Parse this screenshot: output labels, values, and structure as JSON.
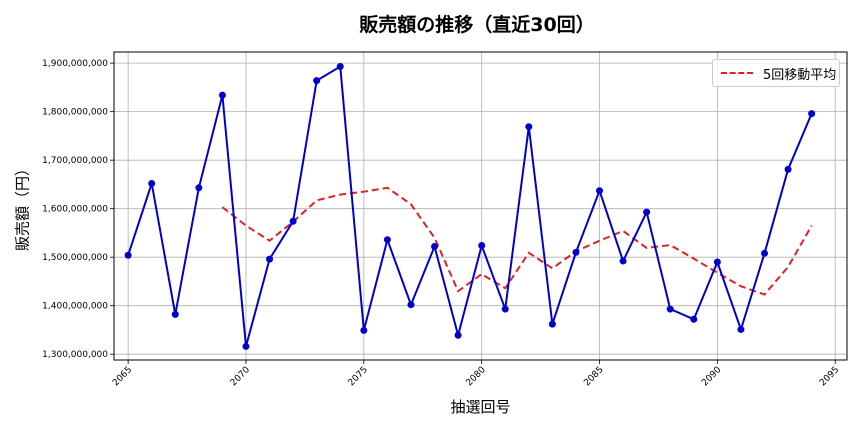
{
  "chart_data": {
    "type": "line",
    "title": "販売額の推移（直近30回）",
    "xlabel": "抽選回号",
    "ylabel": "販売額（円）",
    "x": [
      2065,
      2066,
      2067,
      2068,
      2069,
      2070,
      2071,
      2072,
      2073,
      2074,
      2075,
      2076,
      2077,
      2078,
      2079,
      2080,
      2081,
      2082,
      2083,
      2084,
      2085,
      2086,
      2087,
      2088,
      2089,
      2090,
      2091,
      2092,
      2093,
      2094
    ],
    "series": [
      {
        "name": "販売額",
        "color": "#0000cc",
        "style": "solid-with-markers",
        "values": [
          1504000000,
          1652000000,
          1382000000,
          1643000000,
          1834000000,
          1316000000,
          1496000000,
          1574000000,
          1864000000,
          1893000000,
          1349000000,
          1536000000,
          1402000000,
          1522000000,
          1339000000,
          1524000000,
          1393000000,
          1769000000,
          1362000000,
          1510000000,
          1637000000,
          1492000000,
          1593000000,
          1393000000,
          1372000000,
          1490000000,
          1351000000,
          1508000000,
          1681000000,
          1796000000
        ]
      },
      {
        "name": "5回移動平均",
        "color": "#dd2222",
        "style": "dashed",
        "values": [
          null,
          null,
          null,
          null,
          1603000000,
          1565000000,
          1534000000,
          1573000000,
          1617000000,
          1629000000,
          1635000000,
          1643000000,
          1609000000,
          1540000000,
          1430000000,
          1465000000,
          1436000000,
          1509000000,
          1477000000,
          1512000000,
          1534000000,
          1554000000,
          1519000000,
          1525000000,
          1497000000,
          1468000000,
          1440000000,
          1423000000,
          1480000000,
          1565000000
        ]
      }
    ],
    "xticks": [
      2065,
      2070,
      2075,
      2080,
      2085,
      2090,
      2095
    ],
    "yticks": [
      1300000000,
      1400000000,
      1500000000,
      1600000000,
      1700000000,
      1800000000,
      1900000000
    ],
    "ytick_labels": [
      "1,300,000,000",
      "1,400,000,000",
      "1,500,000,000",
      "1,600,000,000",
      "1,700,000,000",
      "1,800,000,000",
      "1,900,000,000"
    ],
    "xlim": [
      2064.4,
      2095.5
    ],
    "ylim": [
      1288000000,
      1923000000
    ],
    "grid": true,
    "legend_position": "upper right"
  },
  "legend": {
    "label": "5回移動平均"
  }
}
